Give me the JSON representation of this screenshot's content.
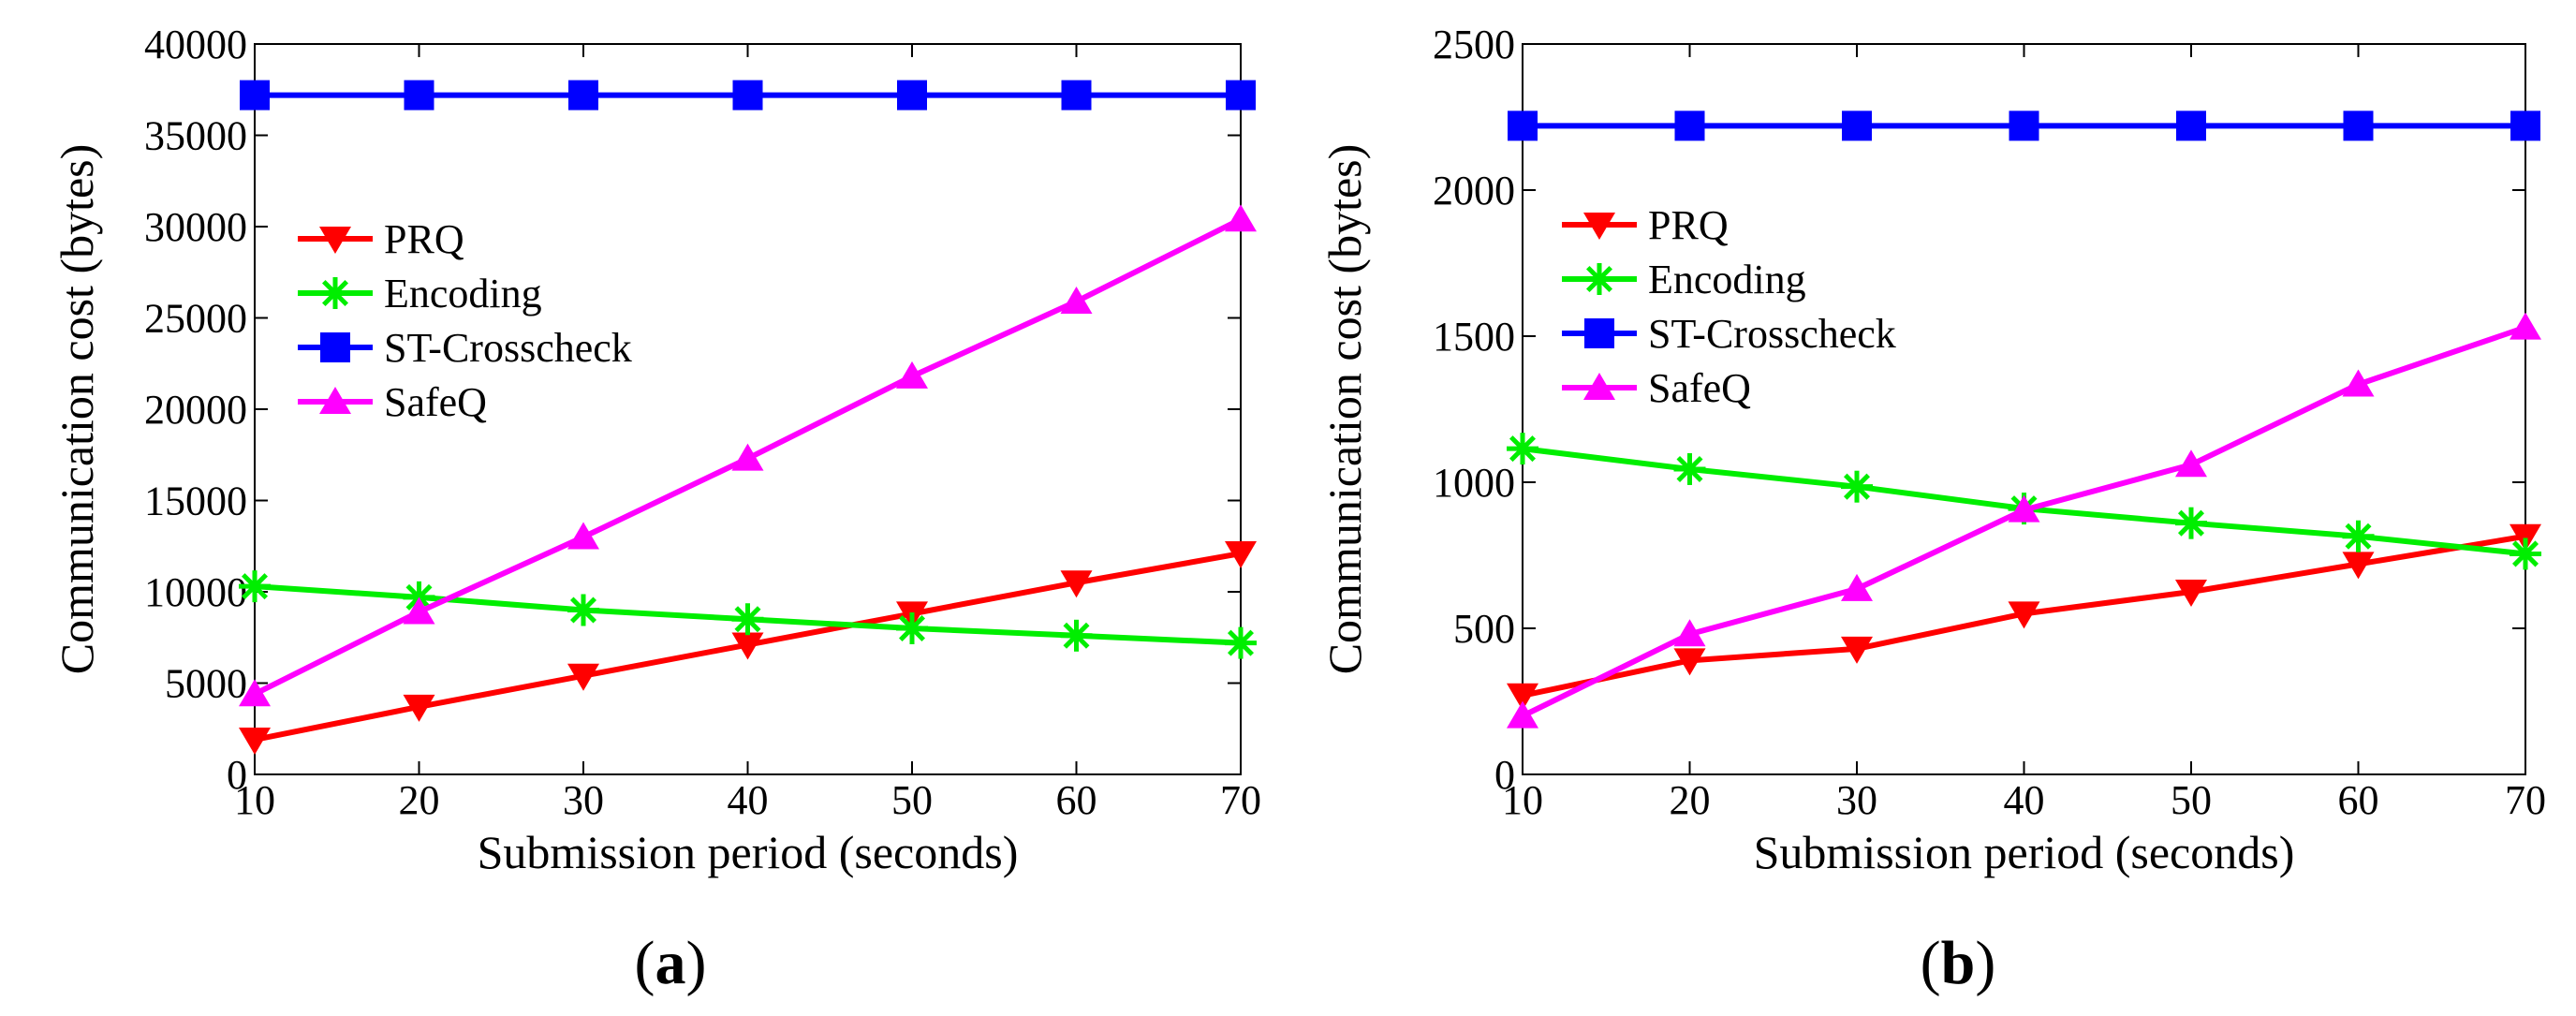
{
  "chart_data": [
    {
      "type": "line",
      "panel_label": {
        "open": "(",
        "letter": "a",
        "close": ")"
      },
      "xlabel": "Submission period (seconds)",
      "ylabel": "Communication cost (bytes)",
      "x": [
        10,
        20,
        30,
        40,
        50,
        60,
        70
      ],
      "xlim": [
        10,
        70
      ],
      "ylim": [
        0,
        40000
      ],
      "xticks": [
        10,
        20,
        30,
        40,
        50,
        60,
        70
      ],
      "yticks": [
        0,
        5000,
        10000,
        15000,
        20000,
        25000,
        30000,
        35000,
        40000
      ],
      "legend_position": "upper-left",
      "grid": false,
      "series": [
        {
          "name": "PRQ",
          "marker": "triangle-down",
          "color": "#ff0000",
          "values": [
            1900,
            3700,
            5400,
            7100,
            8800,
            10500,
            12100
          ]
        },
        {
          "name": "Encoding",
          "marker": "asterisk",
          "color": "#00ee00",
          "values": [
            10300,
            9700,
            9000,
            8500,
            8000,
            7600,
            7200
          ]
        },
        {
          "name": "ST-Crosscheck",
          "marker": "square",
          "color": "#0000ff",
          "values": [
            37200,
            37200,
            37200,
            37200,
            37200,
            37200,
            37200
          ]
        },
        {
          "name": "SafeQ",
          "marker": "triangle-up",
          "color": "#ff00ff",
          "values": [
            4400,
            8900,
            13000,
            17300,
            21800,
            25900,
            30400
          ]
        }
      ]
    },
    {
      "type": "line",
      "panel_label": {
        "open": "(",
        "letter": "b",
        "close": ")"
      },
      "xlabel": "Submission period (seconds)",
      "ylabel": "Communication cost (bytes)",
      "x": [
        10,
        20,
        30,
        40,
        50,
        60,
        70
      ],
      "xlim": [
        10,
        70
      ],
      "ylim": [
        0,
        2500
      ],
      "xticks": [
        10,
        20,
        30,
        40,
        50,
        60,
        70
      ],
      "yticks": [
        0,
        500,
        1000,
        1500,
        2000,
        2500
      ],
      "legend_position": "upper-left",
      "grid": false,
      "series": [
        {
          "name": "PRQ",
          "marker": "triangle-down",
          "color": "#ff0000",
          "values": [
            270,
            390,
            430,
            550,
            625,
            720,
            815
          ]
        },
        {
          "name": "Encoding",
          "marker": "asterisk",
          "color": "#00ee00",
          "values": [
            1115,
            1045,
            985,
            910,
            860,
            815,
            755
          ]
        },
        {
          "name": "ST-Crosscheck",
          "marker": "square",
          "color": "#0000ff",
          "values": [
            2220,
            2220,
            2220,
            2220,
            2220,
            2220,
            2220
          ]
        },
        {
          "name": "SafeQ",
          "marker": "triangle-up",
          "color": "#ff00ff",
          "values": [
            200,
            480,
            635,
            905,
            1060,
            1335,
            1530
          ]
        }
      ]
    }
  ]
}
